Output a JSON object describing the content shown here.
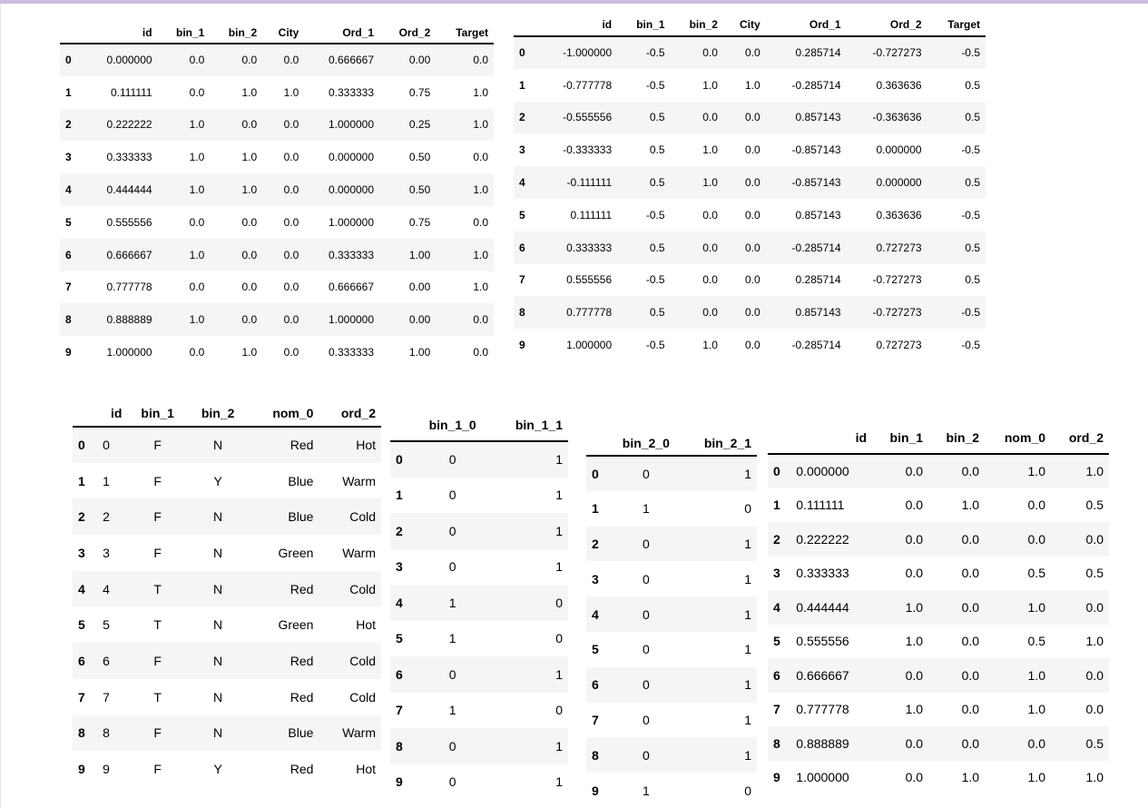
{
  "table1": {
    "columns": [
      "",
      "id",
      "bin_1",
      "bin_2",
      "City",
      "Ord_1",
      "Ord_2",
      "Target"
    ],
    "rows": [
      [
        "0",
        "0.000000",
        "0.0",
        "0.0",
        "0.0",
        "0.666667",
        "0.00",
        "0.0"
      ],
      [
        "1",
        "0.111111",
        "0.0",
        "1.0",
        "1.0",
        "0.333333",
        "0.75",
        "1.0"
      ],
      [
        "2",
        "0.222222",
        "1.0",
        "0.0",
        "0.0",
        "1.000000",
        "0.25",
        "1.0"
      ],
      [
        "3",
        "0.333333",
        "1.0",
        "1.0",
        "0.0",
        "0.000000",
        "0.50",
        "0.0"
      ],
      [
        "4",
        "0.444444",
        "1.0",
        "1.0",
        "0.0",
        "0.000000",
        "0.50",
        "1.0"
      ],
      [
        "5",
        "0.555556",
        "0.0",
        "0.0",
        "0.0",
        "1.000000",
        "0.75",
        "0.0"
      ],
      [
        "6",
        "0.666667",
        "1.0",
        "0.0",
        "0.0",
        "0.333333",
        "1.00",
        "1.0"
      ],
      [
        "7",
        "0.777778",
        "0.0",
        "0.0",
        "0.0",
        "0.666667",
        "0.00",
        "1.0"
      ],
      [
        "8",
        "0.888889",
        "1.0",
        "0.0",
        "0.0",
        "1.000000",
        "0.00",
        "0.0"
      ],
      [
        "9",
        "1.000000",
        "0.0",
        "1.0",
        "0.0",
        "0.333333",
        "1.00",
        "0.0"
      ]
    ]
  },
  "table2": {
    "columns": [
      "",
      "id",
      "bin_1",
      "bin_2",
      "City",
      "Ord_1",
      "Ord_2",
      "Target"
    ],
    "rows": [
      [
        "0",
        "-1.000000",
        "-0.5",
        "0.0",
        "0.0",
        "0.285714",
        "-0.727273",
        "-0.5"
      ],
      [
        "1",
        "-0.777778",
        "-0.5",
        "1.0",
        "1.0",
        "-0.285714",
        "0.363636",
        "0.5"
      ],
      [
        "2",
        "-0.555556",
        "0.5",
        "0.0",
        "0.0",
        "0.857143",
        "-0.363636",
        "0.5"
      ],
      [
        "3",
        "-0.333333",
        "0.5",
        "1.0",
        "0.0",
        "-0.857143",
        "0.000000",
        "-0.5"
      ],
      [
        "4",
        "-0.111111",
        "0.5",
        "1.0",
        "0.0",
        "-0.857143",
        "0.000000",
        "0.5"
      ],
      [
        "5",
        "0.111111",
        "-0.5",
        "0.0",
        "0.0",
        "0.857143",
        "0.363636",
        "-0.5"
      ],
      [
        "6",
        "0.333333",
        "0.5",
        "0.0",
        "0.0",
        "-0.285714",
        "0.727273",
        "0.5"
      ],
      [
        "7",
        "0.555556",
        "-0.5",
        "0.0",
        "0.0",
        "0.285714",
        "-0.727273",
        "0.5"
      ],
      [
        "8",
        "0.777778",
        "0.5",
        "0.0",
        "0.0",
        "0.857143",
        "-0.727273",
        "-0.5"
      ],
      [
        "9",
        "1.000000",
        "-0.5",
        "1.0",
        "0.0",
        "-0.285714",
        "0.727273",
        "-0.5"
      ]
    ]
  },
  "table3": {
    "columns": [
      "",
      "id",
      "bin_1",
      "bin_2",
      "nom_0",
      "ord_2"
    ],
    "rows": [
      [
        "0",
        "0",
        "F",
        "N",
        "Red",
        "Hot"
      ],
      [
        "1",
        "1",
        "F",
        "Y",
        "Blue",
        "Warm"
      ],
      [
        "2",
        "2",
        "F",
        "N",
        "Blue",
        "Cold"
      ],
      [
        "3",
        "3",
        "F",
        "N",
        "Green",
        "Warm"
      ],
      [
        "4",
        "4",
        "T",
        "N",
        "Red",
        "Cold"
      ],
      [
        "5",
        "5",
        "T",
        "N",
        "Green",
        "Hot"
      ],
      [
        "6",
        "6",
        "F",
        "N",
        "Red",
        "Cold"
      ],
      [
        "7",
        "7",
        "T",
        "N",
        "Red",
        "Cold"
      ],
      [
        "8",
        "8",
        "F",
        "N",
        "Blue",
        "Warm"
      ],
      [
        "9",
        "9",
        "F",
        "Y",
        "Red",
        "Hot"
      ]
    ]
  },
  "table4": {
    "columns": [
      "",
      "bin_1_0",
      "bin_1_1"
    ],
    "rows": [
      [
        "0",
        "0",
        "1"
      ],
      [
        "1",
        "0",
        "1"
      ],
      [
        "2",
        "0",
        "1"
      ],
      [
        "3",
        "0",
        "1"
      ],
      [
        "4",
        "1",
        "0"
      ],
      [
        "5",
        "1",
        "0"
      ],
      [
        "6",
        "0",
        "1"
      ],
      [
        "7",
        "1",
        "0"
      ],
      [
        "8",
        "0",
        "1"
      ],
      [
        "9",
        "0",
        "1"
      ]
    ]
  },
  "table5": {
    "columns": [
      "",
      "bin_2_0",
      "bin_2_1"
    ],
    "rows": [
      [
        "0",
        "0",
        "1"
      ],
      [
        "1",
        "1",
        "0"
      ],
      [
        "2",
        "0",
        "1"
      ],
      [
        "3",
        "0",
        "1"
      ],
      [
        "4",
        "0",
        "1"
      ],
      [
        "5",
        "0",
        "1"
      ],
      [
        "6",
        "0",
        "1"
      ],
      [
        "7",
        "0",
        "1"
      ],
      [
        "8",
        "0",
        "1"
      ],
      [
        "9",
        "1",
        "0"
      ]
    ]
  },
  "table6": {
    "columns": [
      "",
      "id",
      "bin_1",
      "bin_2",
      "nom_0",
      "ord_2"
    ],
    "rows": [
      [
        "0",
        "0.000000",
        "0.0",
        "0.0",
        "1.0",
        "1.0"
      ],
      [
        "1",
        "0.111111",
        "0.0",
        "1.0",
        "0.0",
        "0.5"
      ],
      [
        "2",
        "0.222222",
        "0.0",
        "0.0",
        "0.0",
        "0.0"
      ],
      [
        "3",
        "0.333333",
        "0.0",
        "0.0",
        "0.5",
        "0.5"
      ],
      [
        "4",
        "0.444444",
        "1.0",
        "0.0",
        "1.0",
        "0.0"
      ],
      [
        "5",
        "0.555556",
        "1.0",
        "0.0",
        "0.5",
        "1.0"
      ],
      [
        "6",
        "0.666667",
        "0.0",
        "0.0",
        "1.0",
        "0.0"
      ],
      [
        "7",
        "0.777778",
        "1.0",
        "0.0",
        "1.0",
        "0.0"
      ],
      [
        "8",
        "0.888889",
        "0.0",
        "0.0",
        "0.0",
        "0.5"
      ],
      [
        "9",
        "1.000000",
        "0.0",
        "1.0",
        "1.0",
        "1.0"
      ]
    ]
  }
}
